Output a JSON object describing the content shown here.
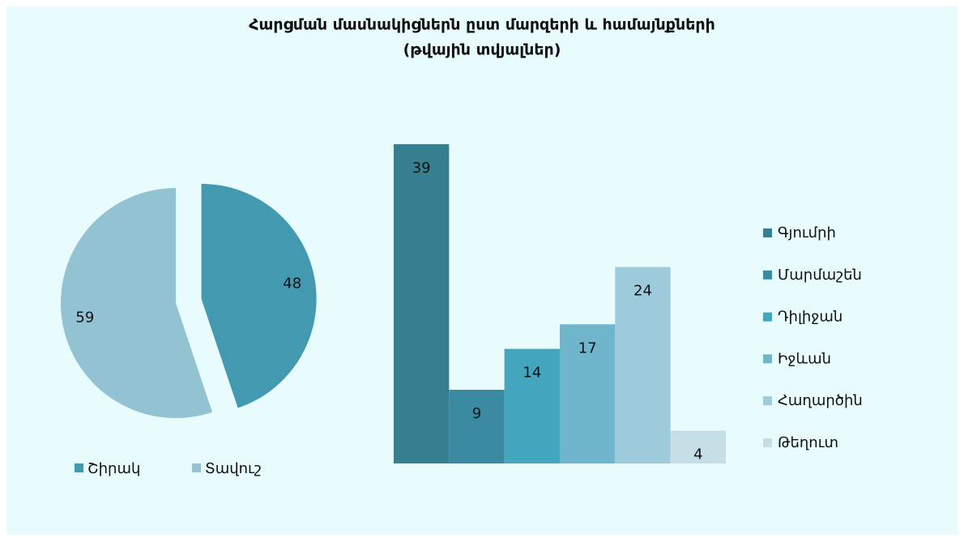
{
  "title": "Հարցման մասնակիցներն ըստ մարզերի և համայնքների",
  "subtitle": "(թվային տվյալներ)",
  "chart_data": [
    {
      "type": "pie",
      "categories": [
        "Շիրակ",
        "Տավուշ"
      ],
      "values": [
        48,
        59
      ],
      "colors": [
        "#4299b0",
        "#93c3d3"
      ],
      "legend": "bottom"
    },
    {
      "type": "bar",
      "legend": "right",
      "series": [
        {
          "name": "Գյումրի",
          "color": "#357f91",
          "values": [
            39
          ]
        },
        {
          "name": "Մարմաշեն",
          "color": "#3a8aa2",
          "values": [
            9
          ]
        },
        {
          "name": "Դիլիջան",
          "color": "#44a5bf",
          "values": [
            14
          ]
        },
        {
          "name": "Իջևան",
          "color": "#6fb6cd",
          "values": [
            17
          ]
        },
        {
          "name": "Հաղարծին",
          "color": "#9ecbdc",
          "values": [
            24
          ]
        },
        {
          "name": "Թեղուտ",
          "color": "#c5dee6",
          "values": [
            4
          ]
        }
      ]
    }
  ]
}
